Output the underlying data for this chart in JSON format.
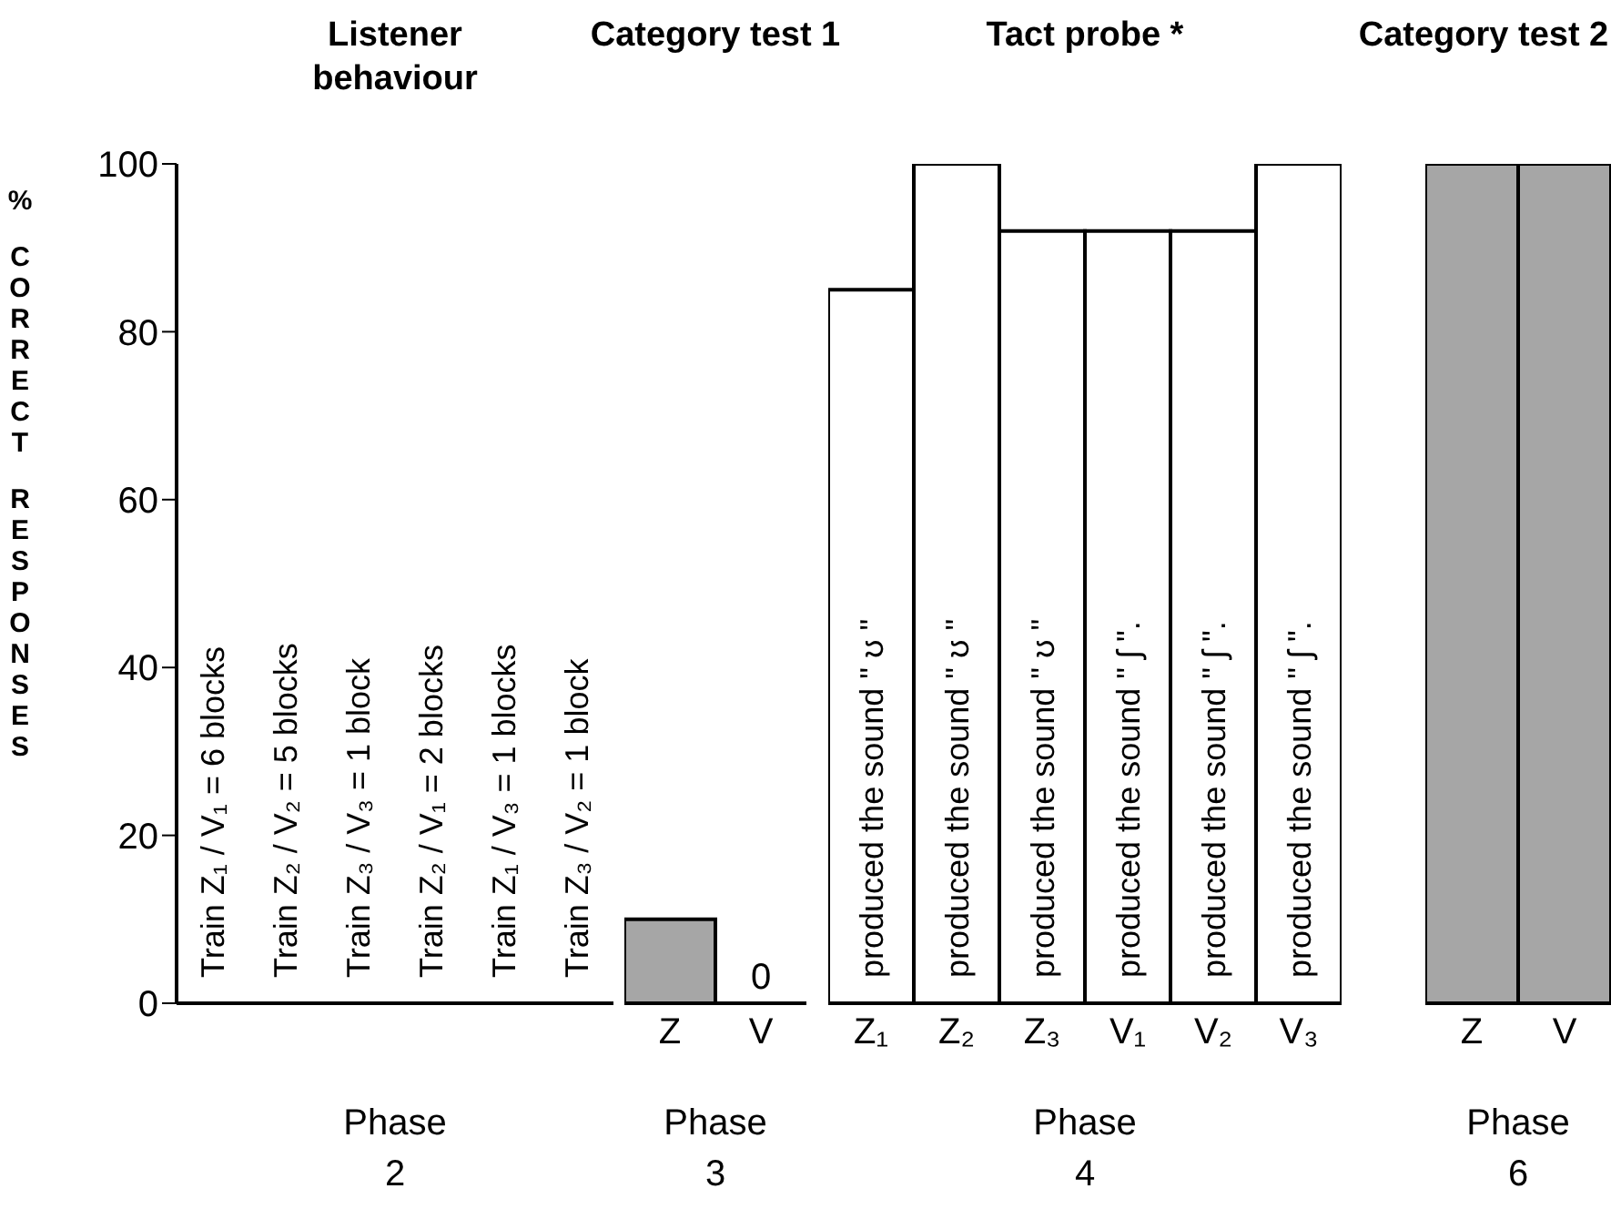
{
  "chart_data": [
    {
      "type": "bar",
      "title": "Listener behaviour",
      "ylabel": "% CORRECT RESPONSES",
      "xlabel": "Phase 2",
      "categories": [
        null,
        null,
        null,
        null,
        null,
        null
      ],
      "values": [
        null,
        null,
        null,
        null,
        null,
        null
      ],
      "ylim": [
        0,
        100
      ],
      "yticks": [
        0,
        20,
        40,
        60,
        80,
        100
      ],
      "tick_labels": "y",
      "annotations": [
        "Train Z₁ / V₁ = 6 blocks",
        "Train Z₂ / V₂ = 5 blocks",
        "Train Z₃ / V₃ = 1 block",
        "Train Z₂ / V₁ = 2 blocks",
        "Train Z₁ / V₃ = 1 blocks",
        "Train Z₃ / V₂ = 1 block"
      ]
    },
    {
      "type": "bar",
      "title": "Category test 1",
      "xlabel": "Phase 3",
      "categories": [
        "Z",
        "V"
      ],
      "values": [
        10,
        0
      ],
      "value_labels": [
        null,
        "0"
      ],
      "color": "#a6a6a6",
      "ylim": [
        0,
        100
      ],
      "tick_labels": "x"
    },
    {
      "type": "bar",
      "title": "Tact probe *",
      "xlabel": "Phase 4",
      "categories": [
        "Z₁",
        "Z₂",
        "Z₃",
        "V₁",
        "V₂",
        "V₃"
      ],
      "values": [
        85,
        100,
        92,
        92,
        92,
        100
      ],
      "color": "#ffffff",
      "ylim": [
        0,
        100
      ],
      "tick_labels": "x",
      "annotations": [
        "produced the sound \" ʊ \"",
        "produced the sound \" ʊ \"",
        "produced the sound \" ʊ \"",
        "produced the sound \" ʃ \".",
        "produced the sound \" ʃ \".",
        "produced the sound \" ʃ \"."
      ]
    },
    {
      "type": "bar",
      "title": "Category test 2",
      "xlabel": "Phase 6",
      "categories": [
        "Z",
        "V"
      ],
      "values": [
        100,
        100
      ],
      "color": "#a6a6a6",
      "ylim": [
        0,
        100
      ],
      "tick_labels": "x"
    }
  ]
}
